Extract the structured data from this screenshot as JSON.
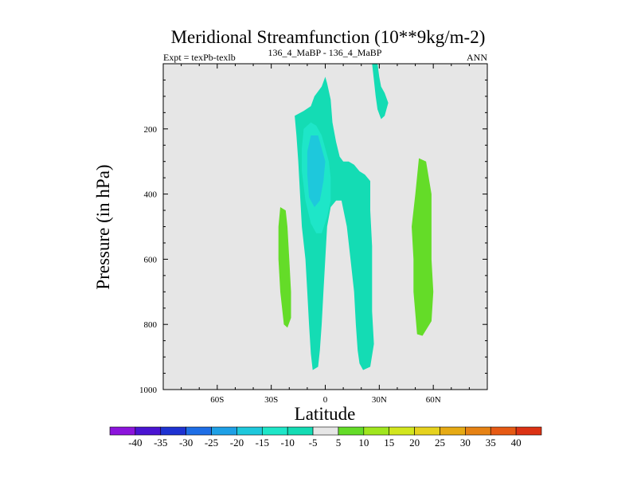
{
  "chart_data": {
    "type": "contour",
    "title": "Meridional Streamfunction (10**9kg/m-2)",
    "subtitle": "136_4_MaBP - 136_4_MaBP",
    "left_label": "Expt = texPb-texlb",
    "right_label": "ANN",
    "xlabel": "Latitude",
    "ylabel": "Pressure (in hPa)",
    "xlim": [
      -90,
      90
    ],
    "ylim": [
      1000,
      0
    ],
    "x_ticks": [
      {
        "value": -60,
        "label": "60S"
      },
      {
        "value": -30,
        "label": "30S"
      },
      {
        "value": 0,
        "label": "0"
      },
      {
        "value": 30,
        "label": "30N"
      },
      {
        "value": 60,
        "label": "60N"
      }
    ],
    "y_ticks": [
      {
        "value": 200,
        "label": "200"
      },
      {
        "value": 400,
        "label": "400"
      },
      {
        "value": 600,
        "label": "600"
      },
      {
        "value": 800,
        "label": "800"
      },
      {
        "value": 1000,
        "label": "1000"
      }
    ],
    "background_color": "#e6e6e6",
    "colorbar": {
      "levels": [
        "-40",
        "-35",
        "-30",
        "-25",
        "-20",
        "-15",
        "-10",
        "-5",
        "5",
        "10",
        "15",
        "20",
        "25",
        "30",
        "35",
        "40"
      ],
      "colors": [
        "#8c14dc",
        "#4a14d2",
        "#1e32d2",
        "#1e6ee6",
        "#1ea0e6",
        "#1ec8dc",
        "#1ee6c8",
        "#14dcb4",
        "#e6e6e6",
        "#64dc28",
        "#a0e61e",
        "#d2e61e",
        "#e6d21e",
        "#e6aa14",
        "#e68214",
        "#e65a14",
        "#dc3214"
      ]
    },
    "regions": [
      {
        "name": "sh-positive-cell",
        "level": "5 to 10",
        "color": "#64dc28",
        "points": [
          [
            -25,
            440
          ],
          [
            -22,
            450
          ],
          [
            -21,
            500
          ],
          [
            -20,
            600
          ],
          [
            -19,
            700
          ],
          [
            -19,
            780
          ],
          [
            -21,
            810
          ],
          [
            -23,
            800
          ],
          [
            -25,
            700
          ],
          [
            -26,
            600
          ],
          [
            -26,
            500
          ]
        ]
      },
      {
        "name": "nh-positive-cell",
        "level": "5 to 10",
        "color": "#64dc28",
        "points": [
          [
            52,
            290
          ],
          [
            56,
            300
          ],
          [
            59,
            400
          ],
          [
            59,
            500
          ],
          [
            59,
            600
          ],
          [
            60,
            700
          ],
          [
            59,
            790
          ],
          [
            54,
            835
          ],
          [
            51,
            830
          ],
          [
            49,
            700
          ],
          [
            49,
            600
          ],
          [
            48,
            500
          ],
          [
            50,
            400
          ]
        ]
      },
      {
        "name": "tropical-negative-cell",
        "level": "-10 to -5",
        "color": "#14dcb4",
        "points": [
          [
            -17,
            160
          ],
          [
            -12,
            145
          ],
          [
            -8,
            130
          ],
          [
            -6,
            100
          ],
          [
            -2,
            70
          ],
          [
            0,
            40
          ],
          [
            1,
            60
          ],
          [
            3,
            110
          ],
          [
            4,
            180
          ],
          [
            6,
            240
          ],
          [
            8,
            285
          ],
          [
            10,
            300
          ],
          [
            13,
            300
          ],
          [
            16,
            310
          ],
          [
            19,
            330
          ],
          [
            22,
            340
          ],
          [
            25,
            360
          ],
          [
            25,
            450
          ],
          [
            26,
            560
          ],
          [
            26,
            650
          ],
          [
            26,
            760
          ],
          [
            27,
            860
          ],
          [
            25,
            930
          ],
          [
            21,
            940
          ],
          [
            19,
            920
          ],
          [
            18,
            880
          ],
          [
            17,
            800
          ],
          [
            16,
            700
          ],
          [
            14,
            600
          ],
          [
            12,
            500
          ],
          [
            9,
            420
          ],
          [
            6,
            420
          ],
          [
            3,
            440
          ],
          [
            1,
            500
          ],
          [
            0,
            600
          ],
          [
            -1,
            700
          ],
          [
            -2,
            800
          ],
          [
            -3,
            880
          ],
          [
            -4,
            930
          ],
          [
            -7,
            940
          ],
          [
            -8,
            890
          ],
          [
            -9,
            800
          ],
          [
            -10,
            700
          ],
          [
            -11,
            600
          ],
          [
            -13,
            500
          ],
          [
            -14,
            400
          ],
          [
            -15,
            300
          ],
          [
            -16,
            220
          ]
        ]
      },
      {
        "name": "equatorial-negative-cell",
        "level": "-15 to -10",
        "color": "#1ee6c8",
        "points": [
          [
            -12,
            200
          ],
          [
            -8,
            180
          ],
          [
            -5,
            190
          ],
          [
            -2,
            220
          ],
          [
            0,
            260
          ],
          [
            2,
            300
          ],
          [
            3,
            350
          ],
          [
            3,
            420
          ],
          [
            1,
            470
          ],
          [
            -2,
            520
          ],
          [
            -5,
            520
          ],
          [
            -8,
            490
          ],
          [
            -11,
            420
          ],
          [
            -13,
            330
          ],
          [
            -13,
            260
          ]
        ]
      },
      {
        "name": "equatorial-core",
        "level": "-20 to -15",
        "color": "#1ec8dc",
        "points": [
          [
            -8,
            220
          ],
          [
            -4,
            220
          ],
          [
            -2,
            260
          ],
          [
            0,
            300
          ],
          [
            -1,
            360
          ],
          [
            -3,
            420
          ],
          [
            -6,
            440
          ],
          [
            -9,
            410
          ],
          [
            -10,
            340
          ],
          [
            -10,
            270
          ]
        ]
      },
      {
        "name": "nh-subtropical-negative",
        "level": "-10 to -5",
        "color": "#14dcb4",
        "points": [
          [
            26,
            0
          ],
          [
            29,
            0
          ],
          [
            30,
            40
          ],
          [
            31,
            70
          ],
          [
            33,
            90
          ],
          [
            35,
            120
          ],
          [
            33,
            160
          ],
          [
            31,
            170
          ],
          [
            29,
            140
          ],
          [
            28,
            100
          ],
          [
            27,
            50
          ]
        ]
      },
      {
        "name": "upper-neutral-gap",
        "level": "-5 to 5",
        "color": "#e6e6e6",
        "points": [
          [
            1,
            0
          ],
          [
            3,
            0
          ],
          [
            3,
            40
          ],
          [
            1,
            40
          ]
        ]
      }
    ]
  }
}
